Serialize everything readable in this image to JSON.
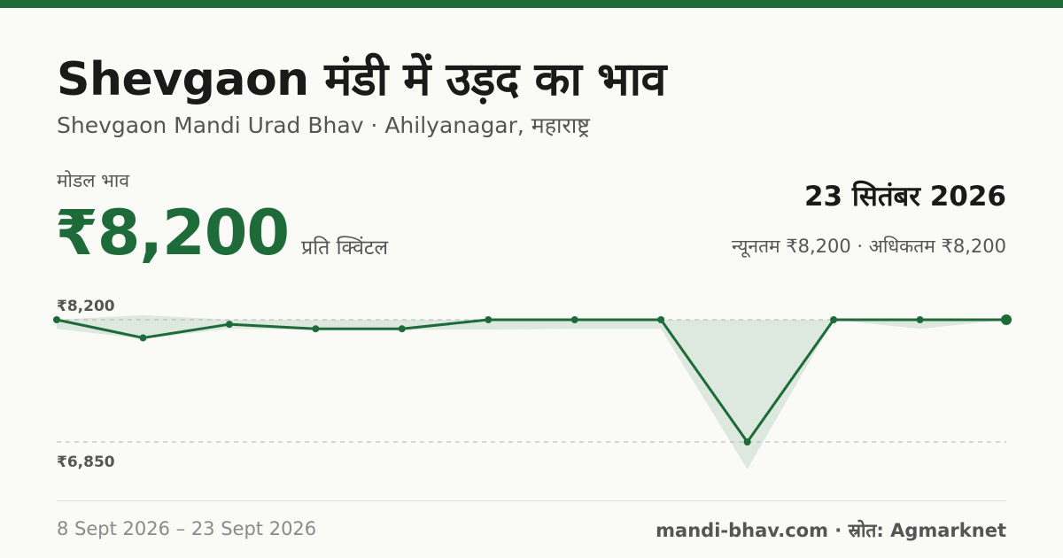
{
  "header": {
    "title": "Shevgaon मंडी में उड़द का भाव",
    "subtitle": "Shevgaon Mandi Urad Bhav · Ahilyanagar, महाराष्ट्र"
  },
  "price": {
    "label": "मोडल भाव",
    "value": "₹8,200",
    "unit": "प्रति क्विंटल"
  },
  "summary": {
    "date": "23 सितंबर 2026",
    "range": "न्यूनतम ₹8,200 · अधिकतम ₹8,200"
  },
  "footer": {
    "date_range": "8 Sept 2026 – 23 Sept 2026",
    "source": "mandi-bhav.com · स्रोत: Agmarknet"
  },
  "colors": {
    "accent": "#1e6b3a",
    "band": "#dde8df"
  },
  "chart_data": {
    "type": "line",
    "ylim": [
      6850,
      8200
    ],
    "y_tick_labels": [
      "₹8,200",
      "₹6,850"
    ],
    "grid": true,
    "series": [
      {
        "values": [
          8200,
          8000,
          8150,
          8100,
          8100,
          8200,
          8200,
          8200,
          6850,
          8200,
          8200,
          8200
        ]
      }
    ],
    "band": {
      "min": [
        8100,
        7990,
        8100,
        8090,
        8090,
        8090,
        8100,
        8100,
        6550,
        8200,
        8100,
        8200
      ],
      "max": [
        8200,
        8250,
        8200,
        8200,
        8200,
        8200,
        8200,
        8200,
        8200,
        8200,
        8200,
        8200
      ]
    }
  }
}
